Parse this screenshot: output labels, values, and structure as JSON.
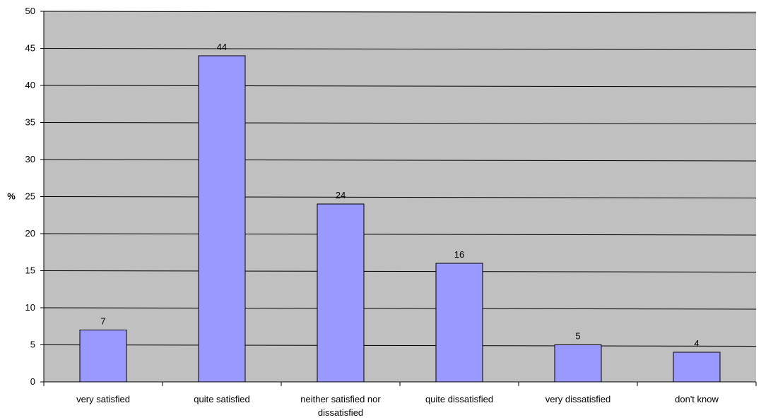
{
  "chart_data": {
    "type": "bar",
    "title": "",
    "xlabel": "",
    "ylabel": "%",
    "ylim": [
      0,
      50
    ],
    "yticks": [
      0,
      5,
      10,
      15,
      20,
      25,
      30,
      35,
      40,
      45,
      50
    ],
    "categories": [
      [
        "very satisfied"
      ],
      [
        "quite satisfied"
      ],
      [
        "neither satisfied nor",
        "dissatisfied"
      ],
      [
        "quite dissatisfied"
      ],
      [
        "very dissatisfied"
      ],
      [
        "don't know"
      ]
    ],
    "values": [
      7,
      44,
      24,
      16,
      5,
      4
    ],
    "grid": true,
    "legend": "none",
    "colors": {
      "plot_background": "#c0c0c0",
      "bar_fill": "#9999ff",
      "bar_stroke": "#000000",
      "gridline": "#000000"
    }
  }
}
